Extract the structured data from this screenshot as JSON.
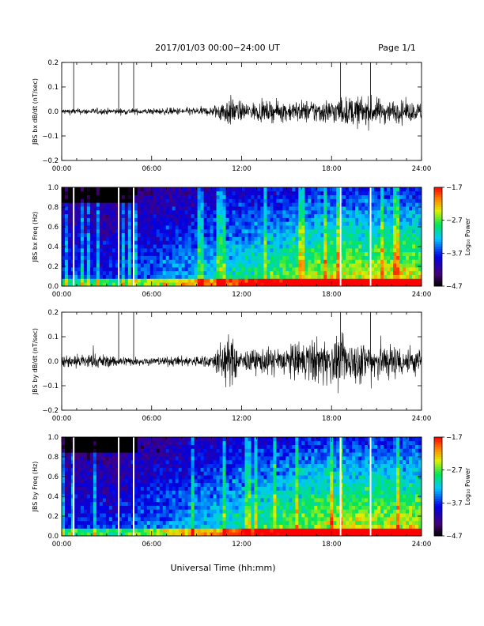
{
  "header": {
    "title": "2017/01/03  00:00−24:00 UT",
    "page": "Page 1/1"
  },
  "footer": {
    "xlabel": "Universal Time (hh:mm)"
  },
  "colors": {
    "trace": "#000000",
    "gap_line": "#ffffff"
  },
  "chart_data": [
    {
      "type": "line",
      "ylabel": "JBS bx dB/dt (nT/sec)",
      "ylim": [
        -0.2,
        0.2
      ],
      "yticks": [
        "0.2",
        "0.1",
        "0.0",
        "−0.1",
        "−0.2"
      ],
      "xlim": [
        0,
        24
      ],
      "xticks": [
        "00:00",
        "06:00",
        "12:00",
        "18:00",
        "24:00"
      ],
      "spikes_hours": [
        0.8,
        3.8,
        4.8,
        18.6,
        20.6
      ],
      "envelope": {
        "x_hours": [
          0,
          4,
          6,
          10,
          10.8,
          11.2,
          12,
          15,
          18,
          20,
          22,
          24
        ],
        "amplitude": [
          0.012,
          0.012,
          0.012,
          0.018,
          0.05,
          0.06,
          0.035,
          0.04,
          0.05,
          0.06,
          0.045,
          0.035
        ]
      }
    },
    {
      "type": "heatmap",
      "ylabel": "JBS bx Freq (Hz)",
      "ylim": [
        0.0,
        1.0
      ],
      "yticks": [
        "1.0",
        "0.8",
        "0.6",
        "0.4",
        "0.2",
        "0.0"
      ],
      "xlim": [
        0,
        24
      ],
      "xticks": [
        "00:00",
        "06:00",
        "12:00",
        "18:00",
        "24:00"
      ],
      "gaps_hours": [
        0.8,
        3.8,
        4.8,
        18.6,
        20.6
      ],
      "colorbar": {
        "label": "Log₁₀ Power",
        "ticks": [
          "−1.7",
          "−2.7",
          "−3.7",
          "−4.7"
        ],
        "range": [
          -4.7,
          -1.7
        ]
      }
    },
    {
      "type": "line",
      "ylabel": "JBS by dB/dt (nT/sec)",
      "ylim": [
        -0.2,
        0.2
      ],
      "yticks": [
        "0.2",
        "0.1",
        "0.0",
        "−0.1",
        "−0.2"
      ],
      "xlim": [
        0,
        24
      ],
      "xticks": [
        "00:00",
        "06:00",
        "12:00",
        "18:00",
        "24:00"
      ],
      "spikes_hours": [
        3.8,
        4.8,
        18.6,
        20.6
      ],
      "envelope": {
        "x_hours": [
          0,
          1,
          2,
          4,
          6,
          10,
          10.8,
          11.2,
          12,
          15,
          17,
          19,
          21,
          24
        ],
        "amplitude": [
          0.025,
          0.03,
          0.03,
          0.02,
          0.015,
          0.025,
          0.09,
          0.1,
          0.04,
          0.06,
          0.09,
          0.085,
          0.08,
          0.05
        ]
      }
    },
    {
      "type": "heatmap",
      "ylabel": "JBS by Freq (Hz)",
      "ylim": [
        0.0,
        1.0
      ],
      "yticks": [
        "1.0",
        "0.8",
        "0.6",
        "0.4",
        "0.2",
        "0.0"
      ],
      "xlim": [
        0,
        24
      ],
      "xticks": [
        "00:00",
        "06:00",
        "12:00",
        "18:00",
        "24:00"
      ],
      "gaps_hours": [
        0.8,
        3.8,
        4.8,
        18.6,
        20.6
      ],
      "colorbar": {
        "label": "Log₁₀ Power",
        "ticks": [
          "−1.7",
          "−2.7",
          "−3.7",
          "−4.7"
        ],
        "range": [
          -4.7,
          -1.7
        ]
      }
    }
  ]
}
